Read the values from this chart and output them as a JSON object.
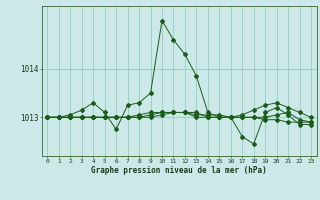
{
  "bg_color": "#cce8e8",
  "grid_color": "#99ccbb",
  "line_color_main": "#1a5c1a",
  "xlabel": "Graphe pression niveau de la mer (hPa)",
  "yticks": [
    1013,
    1014
  ],
  "xlim": [
    -0.5,
    23.5
  ],
  "ylim": [
    1012.2,
    1015.3
  ],
  "hours": [
    0,
    1,
    2,
    3,
    4,
    5,
    6,
    7,
    8,
    9,
    10,
    11,
    12,
    13,
    14,
    15,
    16,
    17,
    18,
    19,
    20,
    21,
    22,
    23
  ],
  "series1": [
    1013.0,
    1013.0,
    1013.05,
    1013.15,
    1013.3,
    1013.1,
    1012.75,
    1013.25,
    1013.3,
    1013.5,
    1015.0,
    1014.6,
    1014.3,
    1013.85,
    1013.1,
    1013.0,
    1013.0,
    1012.6,
    1012.45,
    1013.1,
    1013.2,
    1013.05,
    1012.85,
    1012.85
  ],
  "series2": [
    1013.0,
    1013.0,
    1013.0,
    1013.0,
    1013.0,
    1013.0,
    1013.0,
    1013.0,
    1013.05,
    1013.1,
    1013.1,
    1013.1,
    1013.1,
    1013.1,
    1013.0,
    1013.0,
    1013.0,
    1013.0,
    1013.0,
    1013.0,
    1013.05,
    1013.1,
    1012.95,
    1012.9
  ],
  "series3": [
    1013.0,
    1013.0,
    1013.0,
    1013.0,
    1013.0,
    1013.0,
    1013.0,
    1013.0,
    1013.0,
    1013.05,
    1013.1,
    1013.1,
    1013.1,
    1013.05,
    1013.05,
    1013.05,
    1013.0,
    1013.05,
    1013.15,
    1013.25,
    1013.3,
    1013.2,
    1013.1,
    1013.0
  ],
  "series4": [
    1013.0,
    1013.0,
    1013.0,
    1013.0,
    1013.0,
    1013.0,
    1013.0,
    1013.0,
    1013.0,
    1013.0,
    1013.05,
    1013.1,
    1013.1,
    1013.0,
    1013.0,
    1013.0,
    1013.0,
    1013.0,
    1013.0,
    1012.95,
    1012.95,
    1012.9,
    1012.9,
    1012.9
  ]
}
